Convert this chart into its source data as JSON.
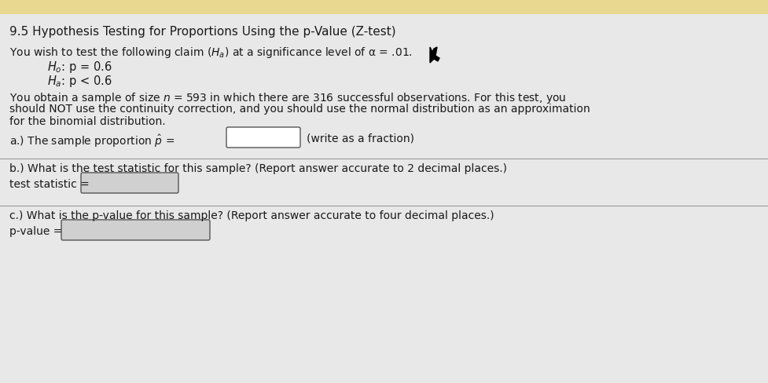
{
  "title": "9.5 Hypothesis Testing for Proportions Using the p-Value (Z-test)",
  "bg_color": "#d8d8d8",
  "top_strip_color": "#e8d890",
  "line1": "You wish to test the following claim ($H_a$) at a significance level of α = .01.",
  "H0": "$H_o$: p = 0.6",
  "Ha": "$H_a$: p < 0.6",
  "line2a": "You obtain a sample of size $n$ = 593 in which there are 316 successful observations. For this test, you",
  "line2b": "should NOT use the continuity correction, and you should use the normal distribution as an approximation",
  "line2c": "for the binomial distribution.",
  "part_a_label": "a.) The sample proportion $\\hat{p}$ =",
  "part_a_suffix": "(write as a fraction)",
  "part_b_label": "b.) What is the test statistic for this sample? (Report answer accurate to 2 decimal places.)",
  "part_b_box_label": "test statistic =",
  "part_c_label": "c.) What is the p-value for this sample? (Report answer accurate to four decimal places.)",
  "part_c_box_label": "p-value =",
  "box_a_color": "#ffffff",
  "box_b_color": "#d0d0d0",
  "box_c_color": "#d0d0d0",
  "text_color": "#1a1a1a",
  "font_size_title": 11,
  "font_size_body": 10
}
